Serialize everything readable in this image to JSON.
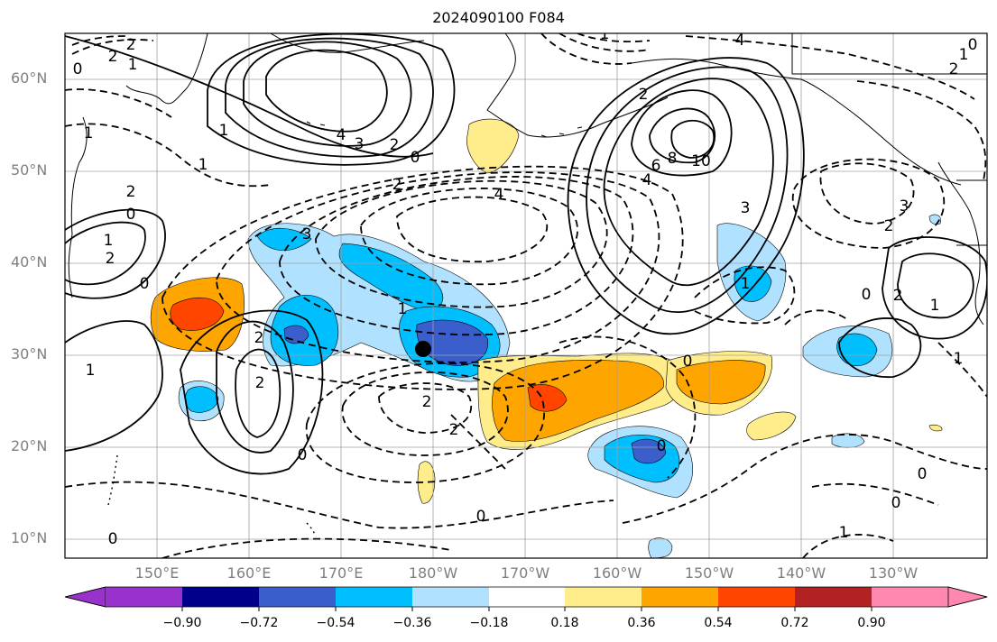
{
  "title": "2024090100 F084",
  "lat_labels": [
    "60°N",
    "50°N",
    "40°N",
    "30°N",
    "20°N",
    "10°N"
  ],
  "lon_labels": [
    "150°E",
    "160°E",
    "170°E",
    "180°W",
    "170°W",
    "160°W",
    "150°W",
    "140°W",
    "130°W"
  ],
  "colorbar": {
    "ticks": [
      "−0.90",
      "−0.72",
      "−0.54",
      "−0.36",
      "−0.18",
      "0.18",
      "0.36",
      "0.54",
      "0.72",
      "0.90"
    ],
    "colors": [
      "#9932cc",
      "#00008b",
      "#3a5fcd",
      "#00bfff",
      "#b0e2ff",
      "#ffffff",
      "#ffec8b",
      "#ffa500",
      "#ff4500",
      "#b22222",
      "#ff88b0"
    ]
  },
  "colors": {
    "coast": "#000000",
    "grid": "#a0a0a0",
    "storm_marker": "#000000"
  },
  "contour_labels": [
    {
      "text": "2"
    },
    {
      "text": "2"
    },
    {
      "text": "1"
    },
    {
      "text": "0"
    },
    {
      "text": "4"
    },
    {
      "text": "3"
    },
    {
      "text": "2"
    },
    {
      "text": "1"
    },
    {
      "text": "0"
    },
    {
      "text": "2"
    },
    {
      "text": "4"
    },
    {
      "text": "3"
    },
    {
      "text": "1"
    },
    {
      "text": "2"
    },
    {
      "text": "1"
    },
    {
      "text": "0"
    },
    {
      "text": "1"
    },
    {
      "text": "2"
    },
    {
      "text": "0"
    },
    {
      "text": "1"
    },
    {
      "text": "2"
    },
    {
      "text": "0"
    },
    {
      "text": "2"
    },
    {
      "text": "2"
    },
    {
      "text": "0"
    },
    {
      "text": "10"
    },
    {
      "text": "8"
    },
    {
      "text": "6"
    },
    {
      "text": "4"
    },
    {
      "text": "2"
    },
    {
      "text": "3"
    },
    {
      "text": "1"
    },
    {
      "text": "0"
    },
    {
      "text": "1"
    },
    {
      "text": "2"
    },
    {
      "text": "3"
    },
    {
      "text": "2"
    },
    {
      "text": "1"
    },
    {
      "text": "0"
    },
    {
      "text": "2"
    },
    {
      "text": "1"
    },
    {
      "text": "0"
    },
    {
      "text": "0"
    },
    {
      "text": "1"
    },
    {
      "text": "0"
    },
    {
      "text": "0"
    },
    {
      "text": "4"
    },
    {
      "text": "2"
    },
    {
      "text": "1"
    },
    {
      "text": "0"
    },
    {
      "text": "1"
    }
  ]
}
